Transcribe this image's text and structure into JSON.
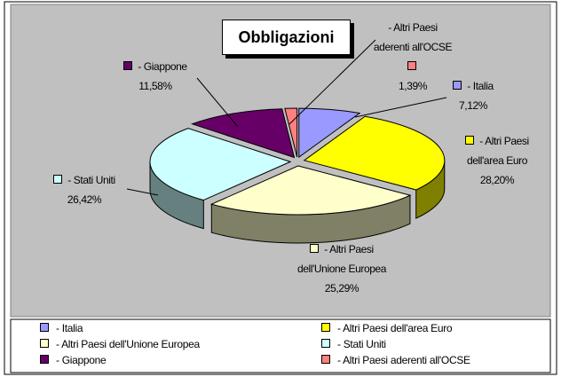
{
  "chart_data": {
    "type": "pie",
    "title": "Obbligazioni",
    "categories": [
      "- Italia",
      "- Altri Paesi dell'area Euro",
      "- Altri Paesi dell'Unione Europea",
      "- Stati Uniti",
      "- Giappone",
      "- Altri Paesi aderenti all'OCSE"
    ],
    "values": [
      7.12,
      28.2,
      25.29,
      26.42,
      11.58,
      1.39
    ],
    "value_labels": [
      "7,12%",
      "28,20%",
      "25,29%",
      "26,42%",
      "11,58%",
      "1,39%"
    ],
    "colors": [
      "#9999ff",
      "#ffff00",
      "#ffffcc",
      "#ccffff",
      "#660066",
      "#ff8080"
    ],
    "legend": "bottom"
  }
}
